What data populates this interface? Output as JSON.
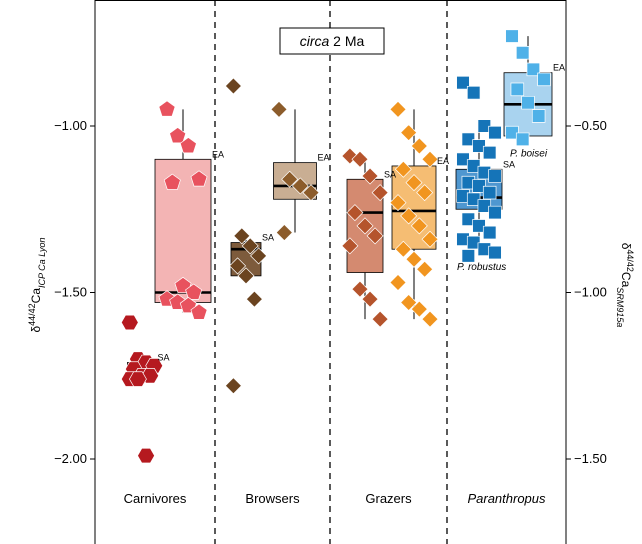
{
  "chart_data": {
    "type": "box",
    "title_italic": "circa",
    "title_rest": " 2 Ma",
    "left_axis": {
      "label_main": "δ",
      "label_super": "44/42",
      "label_ca": "Ca",
      "label_sub": "ICP Ca Lyon",
      "ylim": [
        -2.3,
        -0.7
      ],
      "ticks": [
        -1.0,
        -1.5,
        -2.0
      ],
      "tick_labels": [
        "-1.00",
        "-1.50",
        "-2.00"
      ]
    },
    "right_axis": {
      "label_main": "δ",
      "label_super": "44/42",
      "label_ca": "Ca",
      "label_sub": "SRM915a",
      "ticks": [
        -0.5,
        -1.0,
        -1.5
      ],
      "tick_labels": [
        "-0.50",
        "-1.00",
        "-1.50"
      ],
      "offset_from_left": 0.5
    },
    "groups": [
      {
        "label": "Carnivores",
        "italic": false
      },
      {
        "label": "Browsers",
        "italic": false
      },
      {
        "label": "Grazers",
        "italic": false
      },
      {
        "label": "Paranthropus",
        "italic": true
      }
    ],
    "boxes": [
      {
        "name": "Carnivores SA",
        "tag": "SA",
        "group": 0,
        "slot": 0,
        "q1": -1.76,
        "median": -1.745,
        "q3": -1.71,
        "whisker_low": -1.76,
        "whisker_high": -1.71,
        "fill": "#c8707a",
        "marker_color": "#b5191f",
        "marker": "hexagon",
        "points": [
          -1.59,
          -1.7,
          -1.71,
          -1.72,
          -1.73,
          -1.75,
          -1.75,
          -1.76,
          -1.76,
          -1.99
        ]
      },
      {
        "name": "Carnivores EA",
        "tag": "EA",
        "group": 0,
        "slot": 1,
        "q1": -1.53,
        "median": -1.5,
        "q3": -1.1,
        "whisker_low": -1.56,
        "whisker_high": -0.95,
        "fill": "#f3b4b4",
        "marker_color": "#e8525e",
        "marker": "pentagon",
        "points": [
          -0.95,
          -1.03,
          -1.06,
          -1.16,
          -1.17,
          -1.48,
          -1.5,
          -1.52,
          -1.53,
          -1.54,
          -1.56
        ]
      },
      {
        "name": "Browsers SA",
        "tag": "SA",
        "group": 1,
        "slot": 0,
        "q1": -1.45,
        "median": -1.37,
        "q3": -1.35,
        "whisker_low": -1.45,
        "whisker_high": -1.32,
        "fill": "#7d5b3c",
        "marker_color": "#6b4420",
        "marker": "diamond",
        "points": [
          -0.88,
          -1.33,
          -1.36,
          -1.39,
          -1.42,
          -1.45,
          -1.52,
          -1.78
        ]
      },
      {
        "name": "Browsers EA",
        "tag": "EA",
        "group": 1,
        "slot": 1,
        "q1": -1.22,
        "median": -1.18,
        "q3": -1.11,
        "whisker_low": -1.32,
        "whisker_high": -0.95,
        "fill": "#c9ae93",
        "marker_color": "#8c5c2b",
        "marker": "diamond",
        "points": [
          -0.95,
          -1.16,
          -1.18,
          -1.2,
          -1.32
        ]
      },
      {
        "name": "Grazers SA",
        "tag": "SA",
        "group": 2,
        "slot": 0,
        "q1": -1.44,
        "median": -1.26,
        "q3": -1.16,
        "whisker_low": -1.58,
        "whisker_high": -1.09,
        "fill": "#d48a70",
        "marker_color": "#b5542c",
        "marker": "diamond",
        "points": [
          -1.09,
          -1.1,
          -1.15,
          -1.2,
          -1.26,
          -1.3,
          -1.33,
          -1.36,
          -1.49,
          -1.52,
          -1.58
        ]
      },
      {
        "name": "Grazers EA",
        "tag": "EA",
        "group": 2,
        "slot": 1,
        "q1": -1.37,
        "median": -1.255,
        "q3": -1.12,
        "whisker_low": -1.58,
        "whisker_high": -0.95,
        "fill": "#f5bd73",
        "marker_color": "#f1951f",
        "marker": "diamond",
        "points": [
          -0.95,
          -1.02,
          -1.06,
          -1.1,
          -1.13,
          -1.17,
          -1.2,
          -1.23,
          -1.27,
          -1.3,
          -1.34,
          -1.37,
          -1.4,
          -1.43,
          -1.47,
          -1.53,
          -1.55,
          -1.58
        ]
      },
      {
        "name": "P. robustus",
        "tag": "SA",
        "group": 3,
        "slot": 0,
        "species_label": "P. robustus",
        "q1": -1.25,
        "median": -1.215,
        "q3": -1.13,
        "whisker_low": -1.39,
        "whisker_high": -1.0,
        "fill": "#4f97d0",
        "marker_color": "#1574b8",
        "marker": "square",
        "points": [
          -0.87,
          -0.9,
          -1.0,
          -1.02,
          -1.04,
          -1.06,
          -1.08,
          -1.1,
          -1.12,
          -1.14,
          -1.15,
          -1.17,
          -1.18,
          -1.2,
          -1.21,
          -1.22,
          -1.24,
          -1.26,
          -1.28,
          -1.3,
          -1.32,
          -1.34,
          -1.35,
          -1.37,
          -1.38,
          -1.39
        ]
      },
      {
        "name": "P. boisei",
        "tag": "EA",
        "group": 3,
        "slot": 1,
        "species_label": "P. boisei",
        "q1": -1.03,
        "median": -0.935,
        "q3": -0.84,
        "whisker_low": -1.05,
        "whisker_high": -0.73,
        "fill": "#a9d3ef",
        "marker_color": "#4fb1e8",
        "marker": "square",
        "points": [
          -0.73,
          -0.78,
          -0.83,
          -0.86,
          -0.89,
          -0.93,
          -0.97,
          -1.02,
          -1.04
        ]
      }
    ]
  }
}
